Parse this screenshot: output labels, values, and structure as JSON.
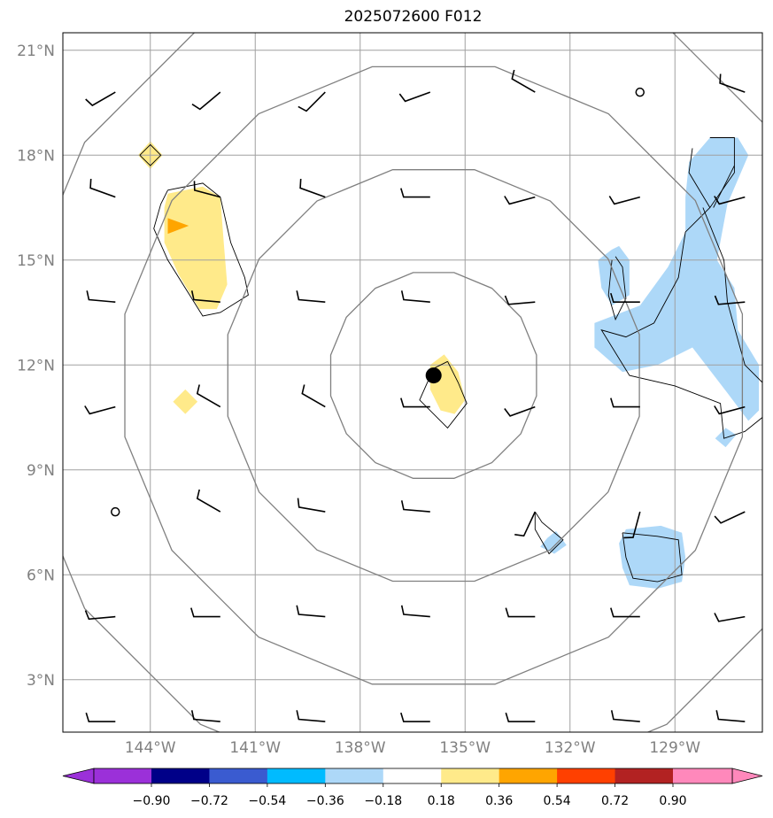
{
  "title": "2025072600 F012",
  "map": {
    "lon_range": [
      -146.5,
      -126.5
    ],
    "lat_range": [
      1.5,
      21.5
    ],
    "lat_ticks": [
      {
        "value": 3,
        "label": "3°N"
      },
      {
        "value": 6,
        "label": "6°N"
      },
      {
        "value": 9,
        "label": "9°N"
      },
      {
        "value": 12,
        "label": "12°N"
      },
      {
        "value": 15,
        "label": "15°N"
      },
      {
        "value": 18,
        "label": "18°N"
      },
      {
        "value": 21,
        "label": "21°N"
      }
    ],
    "lon_ticks": [
      {
        "value": -144,
        "label": "144°W"
      },
      {
        "value": -141,
        "label": "141°W"
      },
      {
        "value": -138,
        "label": "138°W"
      },
      {
        "value": -135,
        "label": "135°W"
      },
      {
        "value": -132,
        "label": "132°W"
      },
      {
        "value": -129,
        "label": "129°W"
      }
    ],
    "storm_center": {
      "lon": -135.9,
      "lat": 11.7
    },
    "range_ring_radii_deg": [
      3,
      6,
      9,
      12
    ],
    "colors": {
      "grid": "#a0a0a0",
      "ring": "#808080",
      "neg_light": "#add8f8",
      "pos_light": "#ffea8a",
      "pos_medium": "#ffa500"
    },
    "shaded_regions": [
      {
        "level": "pos_light",
        "points": [
          [
            -143.5,
            16.9
          ],
          [
            -142.5,
            17.1
          ],
          [
            -142.0,
            16.8
          ],
          [
            -141.9,
            15.5
          ],
          [
            -141.8,
            14.3
          ],
          [
            -142.1,
            13.6
          ],
          [
            -142.6,
            13.6
          ],
          [
            -143.2,
            14.6
          ],
          [
            -143.6,
            15.5
          ],
          [
            -143.6,
            16.5
          ]
        ]
      },
      {
        "level": "pos_medium",
        "points": [
          [
            -143.5,
            16.2
          ],
          [
            -142.9,
            15.98
          ],
          [
            -143.5,
            15.75
          ]
        ]
      },
      {
        "level": "pos_light",
        "points": [
          [
            -144.35,
            18.0
          ],
          [
            -144.0,
            18.4
          ],
          [
            -143.65,
            18.0
          ],
          [
            -144.0,
            17.6
          ]
        ]
      },
      {
        "level": "pos_light",
        "points": [
          [
            -143.35,
            10.95
          ],
          [
            -143.0,
            11.3
          ],
          [
            -142.65,
            10.95
          ],
          [
            -143.0,
            10.6
          ]
        ]
      },
      {
        "level": "pos_light",
        "points": [
          [
            -135.6,
            12.3
          ],
          [
            -135.2,
            11.8
          ],
          [
            -135.0,
            11.0
          ],
          [
            -135.3,
            10.6
          ],
          [
            -135.7,
            10.7
          ],
          [
            -136.0,
            11.3
          ],
          [
            -136.0,
            12.0
          ]
        ]
      },
      {
        "level": "neg_light",
        "points": [
          [
            -128.0,
            18.5
          ],
          [
            -127.2,
            18.5
          ],
          [
            -126.9,
            18.0
          ],
          [
            -127.5,
            16.6
          ],
          [
            -127.8,
            15.0
          ],
          [
            -127.3,
            14.2
          ],
          [
            -127.2,
            13.0
          ],
          [
            -126.6,
            12.0
          ],
          [
            -126.6,
            10.7
          ],
          [
            -126.9,
            10.4
          ],
          [
            -127.5,
            11.2
          ],
          [
            -128.5,
            12.5
          ],
          [
            -129.5,
            12.0
          ],
          [
            -130.5,
            11.8
          ],
          [
            -131.3,
            12.5
          ],
          [
            -131.3,
            13.2
          ],
          [
            -130.0,
            13.7
          ],
          [
            -129.2,
            14.8
          ],
          [
            -128.7,
            15.8
          ],
          [
            -128.7,
            16.8
          ],
          [
            -128.6,
            17.8
          ]
        ]
      },
      {
        "level": "neg_light",
        "points": [
          [
            -130.8,
            15.3
          ],
          [
            -130.6,
            15.4
          ],
          [
            -130.3,
            15.0
          ],
          [
            -130.3,
            14.0
          ],
          [
            -130.8,
            13.7
          ],
          [
            -131.1,
            14.2
          ],
          [
            -131.2,
            15.0
          ]
        ]
      },
      {
        "level": "neg_light",
        "points": [
          [
            -127.85,
            9.9
          ],
          [
            -127.55,
            10.2
          ],
          [
            -127.25,
            10.0
          ],
          [
            -127.55,
            9.65
          ]
        ]
      },
      {
        "level": "neg_light",
        "points": [
          [
            -132.65,
            7.05
          ],
          [
            -132.4,
            7.25
          ],
          [
            -132.1,
            6.85
          ],
          [
            -132.45,
            6.6
          ],
          [
            -132.85,
            6.8
          ]
        ]
      },
      {
        "level": "neg_light",
        "points": [
          [
            -130.4,
            7.3
          ],
          [
            -129.4,
            7.4
          ],
          [
            -128.8,
            7.2
          ],
          [
            -128.7,
            6.5
          ],
          [
            -128.8,
            5.8
          ],
          [
            -129.5,
            5.6
          ],
          [
            -130.3,
            5.7
          ],
          [
            -130.5,
            6.2
          ],
          [
            -130.6,
            6.9
          ]
        ]
      }
    ],
    "contours": [
      [
        [
          -143.5,
          17.0
        ],
        [
          -142.5,
          17.2
        ],
        [
          -142.0,
          16.8
        ],
        [
          -141.7,
          15.5
        ],
        [
          -141.3,
          14.5
        ],
        [
          -141.2,
          14.0
        ],
        [
          -142.0,
          13.5
        ],
        [
          -142.5,
          13.4
        ],
        [
          -143.5,
          15.0
        ],
        [
          -143.9,
          15.9
        ],
        [
          -143.7,
          16.6
        ],
        [
          -143.5,
          17.0
        ]
      ],
      [
        [
          -135.5,
          12.1
        ],
        [
          -135.2,
          11.5
        ],
        [
          -134.95,
          10.9
        ],
        [
          -135.5,
          10.2
        ],
        [
          -136.3,
          11.0
        ],
        [
          -135.9,
          11.9
        ],
        [
          -135.5,
          12.1
        ]
      ],
      [
        [
          -144.3,
          18.0
        ],
        [
          -144.0,
          18.3
        ],
        [
          -143.7,
          18.0
        ],
        [
          -144.0,
          17.7
        ],
        [
          -144.3,
          18.0
        ]
      ],
      [
        [
          -128.0,
          18.5
        ],
        [
          -127.3,
          18.5
        ],
        [
          -127.3,
          17.5
        ],
        [
          -128.0,
          16.5
        ],
        [
          -128.7,
          15.8
        ],
        [
          -128.9,
          14.5
        ],
        [
          -129.6,
          13.2
        ],
        [
          -130.4,
          12.8
        ],
        [
          -131.1,
          13.0
        ],
        [
          -130.3,
          11.7
        ],
        [
          -129.0,
          11.4
        ],
        [
          -127.7,
          10.9
        ],
        [
          -127.6,
          9.9
        ],
        [
          -127.0,
          10.1
        ],
        [
          -126.5,
          10.5
        ]
      ],
      [
        [
          -128.2,
          16.5
        ],
        [
          -127.6,
          15.0
        ],
        [
          -127.5,
          13.8
        ],
        [
          -127.0,
          12.0
        ],
        [
          -126.5,
          11.5
        ]
      ],
      [
        [
          -128.5,
          18.2
        ],
        [
          -128.6,
          17.5
        ],
        [
          -128.0,
          16.5
        ]
      ],
      [
        [
          -127.3,
          17.7
        ],
        [
          -127.8,
          16.7
        ],
        [
          -127.9,
          16.5
        ]
      ],
      [
        [
          -130.7,
          15.1
        ],
        [
          -130.5,
          14.8
        ],
        [
          -130.4,
          13.9
        ],
        [
          -130.7,
          13.3
        ],
        [
          -130.9,
          14.0
        ],
        [
          -130.8,
          15.0
        ]
      ],
      [
        [
          -130.5,
          7.2
        ],
        [
          -129.5,
          7.1
        ],
        [
          -128.9,
          7.0
        ],
        [
          -128.8,
          6.0
        ],
        [
          -129.5,
          5.8
        ],
        [
          -130.2,
          5.9
        ],
        [
          -130.4,
          6.5
        ],
        [
          -130.5,
          7.2
        ]
      ],
      [
        [
          -133.0,
          7.8
        ],
        [
          -132.8,
          7.5
        ],
        [
          -132.2,
          7.0
        ],
        [
          -132.6,
          6.6
        ],
        [
          -133.0,
          7.3
        ],
        [
          -133.0,
          7.8
        ]
      ]
    ],
    "wind_barbs": [
      {
        "lon": -145.0,
        "lat": 19.8,
        "dir": 240,
        "speed": 10
      },
      {
        "lon": -142.0,
        "lat": 19.8,
        "dir": 230,
        "speed": 10
      },
      {
        "lon": -139.0,
        "lat": 19.8,
        "dir": 225,
        "speed": 10
      },
      {
        "lon": -136.0,
        "lat": 19.8,
        "dir": 250,
        "speed": 10
      },
      {
        "lon": -133.0,
        "lat": 19.8,
        "dir": 300,
        "speed": 10
      },
      {
        "lon": -130.0,
        "lat": 19.8,
        "dir": 0,
        "speed": 0
      },
      {
        "lon": -127.0,
        "lat": 19.8,
        "dir": 290,
        "speed": 10
      },
      {
        "lon": -145.0,
        "lat": 16.8,
        "dir": 290,
        "speed": 10
      },
      {
        "lon": -142.0,
        "lat": 16.8,
        "dir": 285,
        "speed": 10
      },
      {
        "lon": -139.0,
        "lat": 16.8,
        "dir": 290,
        "speed": 10
      },
      {
        "lon": -136.0,
        "lat": 16.8,
        "dir": 270,
        "speed": 10
      },
      {
        "lon": -133.0,
        "lat": 16.8,
        "dir": 255,
        "speed": 10
      },
      {
        "lon": -130.0,
        "lat": 16.8,
        "dir": 255,
        "speed": 10
      },
      {
        "lon": -127.0,
        "lat": 16.8,
        "dir": 255,
        "speed": 10
      },
      {
        "lon": -145.0,
        "lat": 13.8,
        "dir": 275,
        "speed": 10
      },
      {
        "lon": -142.0,
        "lat": 13.8,
        "dir": 275,
        "speed": 10
      },
      {
        "lon": -139.0,
        "lat": 13.8,
        "dir": 275,
        "speed": 10
      },
      {
        "lon": -136.0,
        "lat": 13.8,
        "dir": 275,
        "speed": 10
      },
      {
        "lon": -133.0,
        "lat": 13.8,
        "dir": 265,
        "speed": 10
      },
      {
        "lon": -130.0,
        "lat": 13.8,
        "dir": 270,
        "speed": 10
      },
      {
        "lon": -127.0,
        "lat": 13.8,
        "dir": 265,
        "speed": 10
      },
      {
        "lon": -145.0,
        "lat": 10.8,
        "dir": 255,
        "speed": 10
      },
      {
        "lon": -142.0,
        "lat": 10.8,
        "dir": 300,
        "speed": 10
      },
      {
        "lon": -139.0,
        "lat": 10.8,
        "dir": 300,
        "speed": 10
      },
      {
        "lon": -136.0,
        "lat": 10.8,
        "dir": 270,
        "speed": 10
      },
      {
        "lon": -133.0,
        "lat": 10.8,
        "dir": 250,
        "speed": 10
      },
      {
        "lon": -130.0,
        "lat": 10.8,
        "dir": 270,
        "speed": 10
      },
      {
        "lon": -127.0,
        "lat": 10.8,
        "dir": 255,
        "speed": 10
      },
      {
        "lon": -145.0,
        "lat": 7.8,
        "dir": 0,
        "speed": 0
      },
      {
        "lon": -142.0,
        "lat": 7.8,
        "dir": 300,
        "speed": 10
      },
      {
        "lon": -139.0,
        "lat": 7.8,
        "dir": 280,
        "speed": 10
      },
      {
        "lon": -136.0,
        "lat": 7.8,
        "dir": 275,
        "speed": 10
      },
      {
        "lon": -133.0,
        "lat": 7.8,
        "dir": 205,
        "speed": 10
      },
      {
        "lon": -130.0,
        "lat": 7.8,
        "dir": 195,
        "speed": 10
      },
      {
        "lon": -127.0,
        "lat": 7.8,
        "dir": 245,
        "speed": 10
      },
      {
        "lon": -145.0,
        "lat": 4.8,
        "dir": 265,
        "speed": 10
      },
      {
        "lon": -142.0,
        "lat": 4.8,
        "dir": 270,
        "speed": 10
      },
      {
        "lon": -139.0,
        "lat": 4.8,
        "dir": 275,
        "speed": 10
      },
      {
        "lon": -136.0,
        "lat": 4.8,
        "dir": 275,
        "speed": 10
      },
      {
        "lon": -133.0,
        "lat": 4.8,
        "dir": 270,
        "speed": 10
      },
      {
        "lon": -130.0,
        "lat": 4.8,
        "dir": 270,
        "speed": 10
      },
      {
        "lon": -127.0,
        "lat": 4.8,
        "dir": 260,
        "speed": 10
      },
      {
        "lon": -145.0,
        "lat": 1.8,
        "dir": 270,
        "speed": 10
      },
      {
        "lon": -142.0,
        "lat": 1.8,
        "dir": 275,
        "speed": 10
      },
      {
        "lon": -139.0,
        "lat": 1.8,
        "dir": 275,
        "speed": 10
      },
      {
        "lon": -136.0,
        "lat": 1.8,
        "dir": 270,
        "speed": 10
      },
      {
        "lon": -133.0,
        "lat": 1.8,
        "dir": 270,
        "speed": 10
      },
      {
        "lon": -130.0,
        "lat": 1.8,
        "dir": 275,
        "speed": 10
      },
      {
        "lon": -127.0,
        "lat": 1.8,
        "dir": 275,
        "speed": 10
      }
    ]
  },
  "colorbar": {
    "bounds": [
      -0.9,
      -0.72,
      -0.54,
      -0.36,
      -0.18,
      0.18,
      0.36,
      0.54,
      0.72,
      0.9
    ],
    "tick_labels": [
      "−0.90",
      "−0.72",
      "−0.54",
      "−0.36",
      "−0.18",
      "0.18",
      "0.36",
      "0.54",
      "0.72",
      "0.90"
    ],
    "under_color": "#9b30d9",
    "over_color": "#ff88bb",
    "colors": [
      "#000088",
      "#3a5bd0",
      "#00bbff",
      "#add8f8",
      "#ffffff",
      "#ffea8a",
      "#ffa500",
      "#ff4000",
      "#b22222"
    ]
  }
}
